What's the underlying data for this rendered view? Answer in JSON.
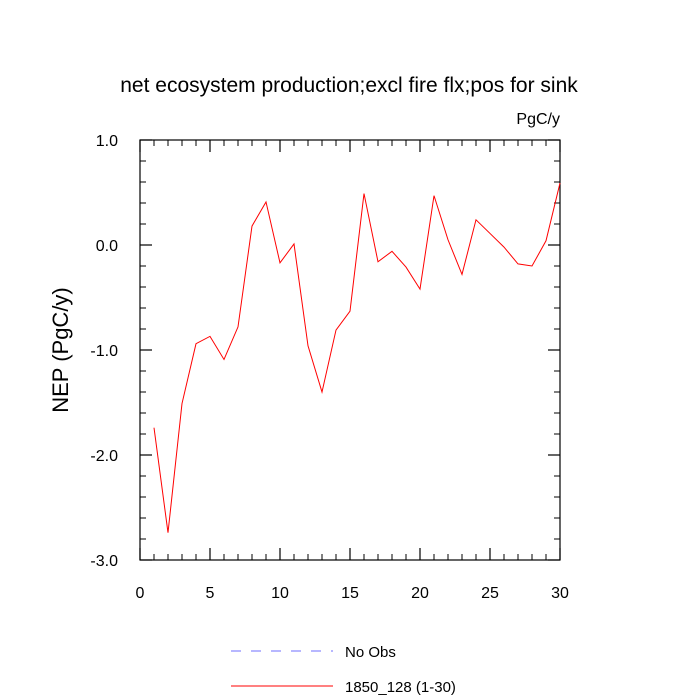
{
  "chart_data": {
    "type": "line",
    "title": "net ecosystem production;excl fire flx;pos for sink",
    "units": "PgC/y",
    "ylabel": "NEP  (PgC/y)",
    "xlabel": "",
    "xlim": [
      0,
      30
    ],
    "ylim": [
      -3.0,
      1.0
    ],
    "x_ticks": [
      0,
      5,
      10,
      15,
      20,
      25,
      30
    ],
    "x_tick_labels": [
      "0",
      "5",
      "10",
      "15",
      "20",
      "25",
      "30"
    ],
    "y_ticks": [
      -3.0,
      -2.0,
      -1.0,
      0.0,
      1.0
    ],
    "y_tick_labels": [
      "-3.0",
      "-2.0",
      "-1.0",
      "0.0",
      "1.0"
    ],
    "grid": false,
    "legend_position": "bottom-center",
    "series": [
      {
        "name": "No Obs",
        "color": "#6f6fff",
        "style": "dashed",
        "x": [],
        "y": []
      },
      {
        "name": "1850_128 (1-30)",
        "color": "#ff0000",
        "style": "solid",
        "x": [
          1,
          2,
          3,
          4,
          5,
          6,
          7,
          8,
          9,
          10,
          11,
          12,
          13,
          14,
          15,
          16,
          17,
          18,
          19,
          20,
          21,
          22,
          23,
          24,
          25,
          26,
          27,
          28,
          29,
          30
        ],
        "y": [
          -1.74,
          -2.74,
          -1.51,
          -0.94,
          -0.87,
          -1.09,
          -0.78,
          0.18,
          0.41,
          -0.17,
          0.01,
          -0.96,
          -1.4,
          -0.81,
          -0.63,
          0.49,
          -0.16,
          -0.06,
          -0.21,
          -0.42,
          0.47,
          0.05,
          -0.28,
          0.24,
          0.11,
          -0.02,
          -0.18,
          -0.2,
          0.04,
          0.59
        ]
      }
    ]
  }
}
